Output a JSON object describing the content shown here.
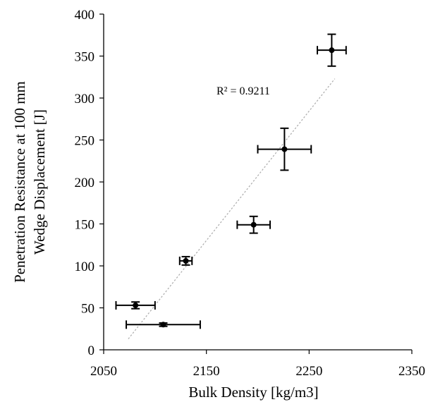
{
  "chart_data": {
    "type": "scatter",
    "xlabel": "Bulk Density [kg/m3]",
    "ylabel_lines": [
      "Penetration Resistance at 100 mm",
      "Wedge Displacement [J]"
    ],
    "xlim": [
      2050,
      2350
    ],
    "ylim": [
      0,
      400
    ],
    "xticks": [
      2050,
      2150,
      2250,
      2350
    ],
    "yticks": [
      0,
      50,
      100,
      150,
      200,
      250,
      300,
      350,
      400
    ],
    "grid": false,
    "points": [
      {
        "x": 2081,
        "y": 53,
        "xerr": 19,
        "yerr": 4
      },
      {
        "x": 2108,
        "y": 30,
        "xerr": 36,
        "yerr": 2
      },
      {
        "x": 2130,
        "y": 106,
        "xerr": 6,
        "yerr": 5
      },
      {
        "x": 2196,
        "y": 149,
        "xerr": 16,
        "yerr": 10
      },
      {
        "x": 2226,
        "y": 239,
        "xerr": 26,
        "yerr": 25
      },
      {
        "x": 2272,
        "y": 357,
        "xerr": 14,
        "yerr": 19
      }
    ],
    "trendline": {
      "style": "dashed",
      "color": "#aaaaaa",
      "x": [
        2074,
        2275
      ],
      "y": [
        13,
        323
      ],
      "label": "R² = 0.9211"
    }
  }
}
